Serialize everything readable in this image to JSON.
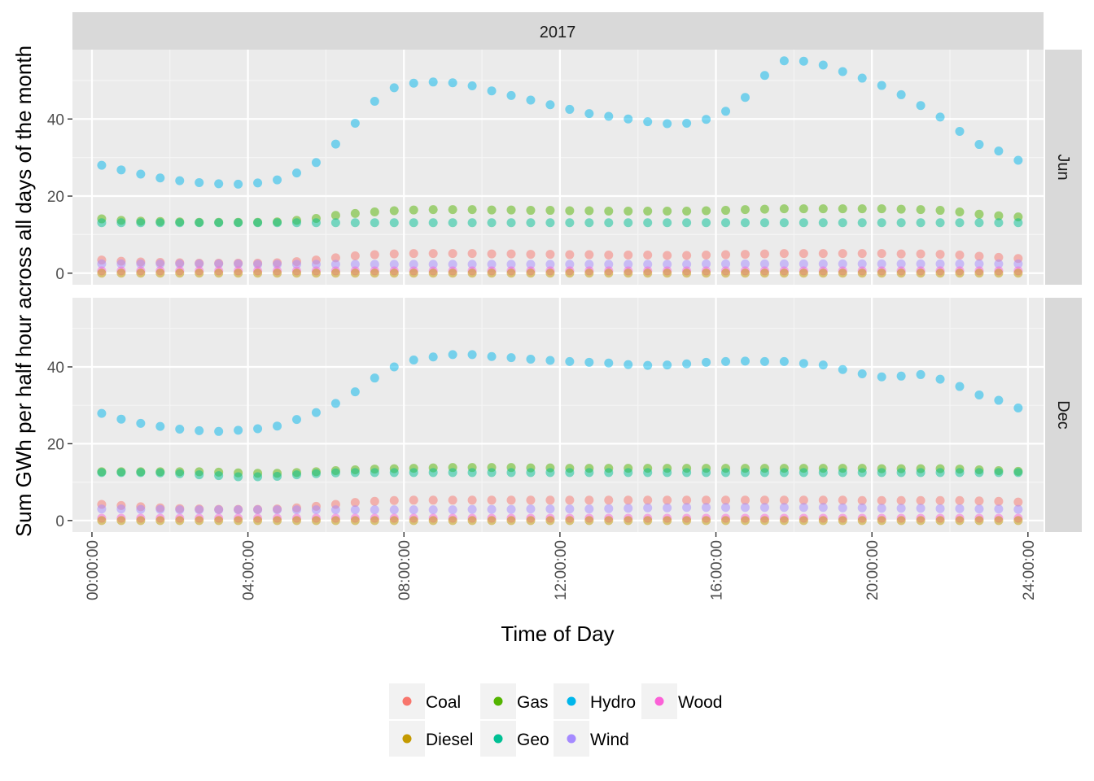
{
  "chart_data": {
    "type": "scatter",
    "title": "",
    "xlabel": "Time of Day",
    "ylabel": "Sum GWh per half hour across all days of the month",
    "column_strip": "2017",
    "facets": [
      "Jun",
      "Dec"
    ],
    "x_ticks": [
      "00:00:00",
      "04:00:00",
      "08:00:00",
      "12:00:00",
      "16:00:00",
      "20:00:00",
      "24:00:00"
    ],
    "y_ticks": [
      0,
      20,
      40
    ],
    "ylim": [
      -3,
      58
    ],
    "xlim_hours": [
      -0.5,
      24.4
    ],
    "x_hours": [
      0.25,
      0.75,
      1.25,
      1.75,
      2.25,
      2.75,
      3.25,
      3.75,
      4.25,
      4.75,
      5.25,
      5.75,
      6.25,
      6.75,
      7.25,
      7.75,
      8.25,
      8.75,
      9.25,
      9.75,
      10.25,
      10.75,
      11.25,
      11.75,
      12.25,
      12.75,
      13.25,
      13.75,
      14.25,
      14.75,
      15.25,
      15.75,
      16.25,
      16.75,
      17.25,
      17.75,
      18.25,
      18.75,
      19.25,
      19.75,
      20.25,
      20.75,
      21.25,
      21.75,
      22.25,
      22.75,
      23.25,
      23.75
    ],
    "grid": true,
    "legend_position": "bottom",
    "legend": [
      "Coal",
      "Diesel",
      "Gas",
      "Geo",
      "Hydro",
      "Wind",
      "Wood"
    ],
    "colors": {
      "Coal": "#F8766D",
      "Diesel": "#C49A00",
      "Gas": "#53B400",
      "Geo": "#00C094",
      "Hydro": "#00B6EB",
      "Wind": "#A58AFF",
      "Wood": "#FB61D7"
    },
    "panels": [
      {
        "facet": "Jun",
        "series": [
          {
            "name": "Hydro",
            "values": [
              28,
              26.8,
              25.7,
              24.7,
              24,
              23.5,
              23.2,
              23.1,
              23.4,
              24.2,
              26,
              28.7,
              33.5,
              38.9,
              44.6,
              48.1,
              49.3,
              49.6,
              49.4,
              48.6,
              47.3,
              46.1,
              44.9,
              43.7,
              42.5,
              41.4,
              40.7,
              40,
              39.3,
              38.8,
              38.9,
              39.9,
              42,
              45.6,
              51.3,
              55.1,
              55,
              54,
              52.3,
              50.6,
              48.7,
              46.3,
              43.5,
              40.5,
              36.8,
              33.4,
              31.7,
              29.3
            ]
          },
          {
            "name": "Gas",
            "values": [
              14.1,
              13.7,
              13.5,
              13.4,
              13.3,
              13.2,
              13.2,
              13.2,
              13.2,
              13.3,
              13.7,
              14.2,
              15,
              15.5,
              15.9,
              16.2,
              16.4,
              16.5,
              16.5,
              16.5,
              16.4,
              16.4,
              16.3,
              16.3,
              16.2,
              16.2,
              16.1,
              16.1,
              16.1,
              16.1,
              16.1,
              16.2,
              16.3,
              16.5,
              16.6,
              16.7,
              16.7,
              16.7,
              16.7,
              16.7,
              16.7,
              16.6,
              16.5,
              16.3,
              15.9,
              15.3,
              14.9,
              14.6
            ]
          },
          {
            "name": "Geo",
            "values": [
              13.1,
              13.1,
              13.1,
              13.1,
              13.1,
              13.1,
              13.1,
              13.1,
              13.1,
              13.1,
              13.1,
              13.1,
              13.1,
              13.1,
              13.1,
              13.1,
              13.1,
              13.1,
              13.1,
              13.1,
              13.1,
              13.1,
              13.1,
              13.1,
              13.1,
              13.1,
              13.1,
              13.1,
              13.1,
              13.1,
              13.1,
              13.1,
              13.1,
              13.1,
              13.1,
              13.1,
              13.1,
              13.1,
              13.1,
              13.1,
              13.1,
              13.1,
              13.1,
              13.1,
              13.1,
              13.1,
              13.1,
              13.1
            ]
          },
          {
            "name": "Coal",
            "values": [
              3.4,
              3.1,
              2.9,
              2.8,
              2.7,
              2.6,
              2.6,
              2.6,
              2.6,
              2.7,
              3,
              3.4,
              4,
              4.5,
              4.8,
              5,
              5.1,
              5.1,
              5.1,
              5.1,
              5,
              5,
              4.9,
              4.9,
              4.8,
              4.8,
              4.7,
              4.7,
              4.7,
              4.6,
              4.6,
              4.7,
              4.8,
              4.9,
              5,
              5.1,
              5.1,
              5.1,
              5.1,
              5.1,
              5.1,
              5,
              5,
              4.9,
              4.7,
              4.4,
              4.1,
              3.8
            ]
          },
          {
            "name": "Wind",
            "values": [
              2.4,
              2.4,
              2.4,
              2.4,
              2.4,
              2.4,
              2.4,
              2.4,
              2.3,
              2.3,
              2.3,
              2.3,
              2.3,
              2.3,
              2.3,
              2.3,
              2.3,
              2.3,
              2.3,
              2.3,
              2.3,
              2.3,
              2.3,
              2.3,
              2.3,
              2.3,
              2.3,
              2.3,
              2.3,
              2.3,
              2.3,
              2.4,
              2.4,
              2.4,
              2.4,
              2.4,
              2.4,
              2.4,
              2.4,
              2.4,
              2.4,
              2.4,
              2.4,
              2.4,
              2.4,
              2.4,
              2.4,
              2.4
            ]
          },
          {
            "name": "Wood",
            "values": [
              0.6,
              0.6,
              0.6,
              0.6,
              0.6,
              0.6,
              0.6,
              0.6,
              0.6,
              0.6,
              0.6,
              0.6,
              0.6,
              0.6,
              0.6,
              0.6,
              0.6,
              0.6,
              0.6,
              0.6,
              0.6,
              0.6,
              0.6,
              0.6,
              0.6,
              0.6,
              0.6,
              0.6,
              0.6,
              0.6,
              0.6,
              0.6,
              0.6,
              0.6,
              0.6,
              0.6,
              0.6,
              0.6,
              0.6,
              0.6,
              0.6,
              0.6,
              0.6,
              0.6,
              0.6,
              0.6,
              0.6,
              0.6
            ]
          },
          {
            "name": "Diesel",
            "values": [
              0,
              0,
              0,
              0,
              0,
              0,
              0,
              0,
              0,
              0,
              0,
              0,
              0,
              0,
              0,
              0,
              0,
              0,
              0,
              0,
              0,
              0,
              0,
              0,
              0,
              0,
              0,
              0,
              0,
              0,
              0,
              0,
              0,
              0,
              0,
              0,
              0,
              0,
              0,
              0,
              0,
              0,
              0,
              0,
              0,
              0,
              0,
              0
            ]
          }
        ]
      },
      {
        "facet": "Dec",
        "series": [
          {
            "name": "Hydro",
            "values": [
              27.9,
              26.4,
              25.3,
              24.5,
              23.8,
              23.4,
              23.2,
              23.5,
              23.9,
              24.6,
              26.3,
              28.1,
              30.5,
              33.5,
              37.1,
              40,
              41.8,
              42.6,
              43.2,
              43.2,
              42.7,
              42.4,
              42,
              41.7,
              41.4,
              41.2,
              41,
              40.6,
              40.4,
              40.5,
              40.8,
              41.2,
              41.4,
              41.5,
              41.4,
              41.4,
              40.9,
              40.5,
              39.3,
              38.2,
              37.4,
              37.6,
              38,
              36.8,
              34.9,
              32.7,
              31.3,
              29.3
            ]
          },
          {
            "name": "Gas",
            "values": [
              12.7,
              12.7,
              12.7,
              12.7,
              12.7,
              12.7,
              12.6,
              12.4,
              12.3,
              12.3,
              12.5,
              12.7,
              13,
              13.2,
              13.4,
              13.5,
              13.6,
              13.7,
              13.8,
              13.8,
              13.8,
              13.8,
              13.7,
              13.7,
              13.6,
              13.6,
              13.6,
              13.6,
              13.6,
              13.6,
              13.6,
              13.6,
              13.6,
              13.6,
              13.6,
              13.6,
              13.6,
              13.6,
              13.6,
              13.6,
              13.5,
              13.5,
              13.5,
              13.5,
              13.4,
              13.2,
              13,
              12.8
            ]
          },
          {
            "name": "Geo",
            "values": [
              12.5,
              12.5,
              12.5,
              12.4,
              12.2,
              11.9,
              11.7,
              11.4,
              11.4,
              11.5,
              11.9,
              12.2,
              12.4,
              12.5,
              12.5,
              12.5,
              12.5,
              12.5,
              12.5,
              12.5,
              12.5,
              12.5,
              12.5,
              12.5,
              12.5,
              12.5,
              12.5,
              12.5,
              12.5,
              12.5,
              12.5,
              12.5,
              12.5,
              12.5,
              12.5,
              12.5,
              12.5,
              12.5,
              12.5,
              12.5,
              12.5,
              12.5,
              12.5,
              12.5,
              12.5,
              12.5,
              12.5,
              12.5
            ]
          },
          {
            "name": "Coal",
            "values": [
              4.2,
              3.9,
              3.6,
              3.3,
              3.1,
              3,
              2.9,
              2.9,
              2.9,
              3,
              3.3,
              3.7,
              4.2,
              4.7,
              5,
              5.2,
              5.3,
              5.3,
              5.3,
              5.3,
              5.3,
              5.3,
              5.3,
              5.3,
              5.3,
              5.3,
              5.3,
              5.3,
              5.3,
              5.3,
              5.3,
              5.3,
              5.3,
              5.3,
              5.3,
              5.3,
              5.3,
              5.3,
              5.3,
              5.2,
              5.2,
              5.2,
              5.2,
              5.2,
              5.2,
              5.1,
              5,
              4.8
            ]
          },
          {
            "name": "Wind",
            "values": [
              3,
              3,
              2.9,
              2.9,
              2.8,
              2.8,
              2.8,
              2.8,
              2.8,
              2.8,
              2.8,
              2.8,
              2.8,
              2.8,
              2.8,
              2.8,
              2.8,
              2.8,
              2.8,
              2.9,
              2.9,
              2.9,
              3,
              3,
              3,
              3,
              3.1,
              3.2,
              3.3,
              3.3,
              3.4,
              3.4,
              3.4,
              3.4,
              3.4,
              3.4,
              3.4,
              3.4,
              3.3,
              3.3,
              3.2,
              3.2,
              3.2,
              3.1,
              3.1,
              3,
              3,
              2.9
            ]
          },
          {
            "name": "Wood",
            "values": [
              0.6,
              0.6,
              0.6,
              0.6,
              0.6,
              0.6,
              0.6,
              0.6,
              0.6,
              0.6,
              0.6,
              0.6,
              0.6,
              0.6,
              0.6,
              0.6,
              0.6,
              0.6,
              0.6,
              0.6,
              0.6,
              0.6,
              0.6,
              0.6,
              0.6,
              0.6,
              0.6,
              0.6,
              0.6,
              0.6,
              0.6,
              0.6,
              0.6,
              0.6,
              0.6,
              0.6,
              0.6,
              0.6,
              0.6,
              0.6,
              0.6,
              0.6,
              0.6,
              0.6,
              0.6,
              0.6,
              0.6,
              0.6
            ]
          },
          {
            "name": "Diesel",
            "values": [
              0,
              0,
              0,
              0,
              0,
              0,
              0,
              0,
              0,
              0,
              0,
              0,
              0,
              0,
              0,
              0,
              0,
              0,
              0,
              0,
              0,
              0,
              0,
              0,
              0,
              0,
              0,
              0,
              0,
              0,
              0,
              0,
              0,
              0,
              0,
              0,
              0,
              0,
              0,
              0,
              0,
              0,
              0,
              0,
              0,
              0,
              0,
              0
            ]
          }
        ]
      }
    ]
  }
}
